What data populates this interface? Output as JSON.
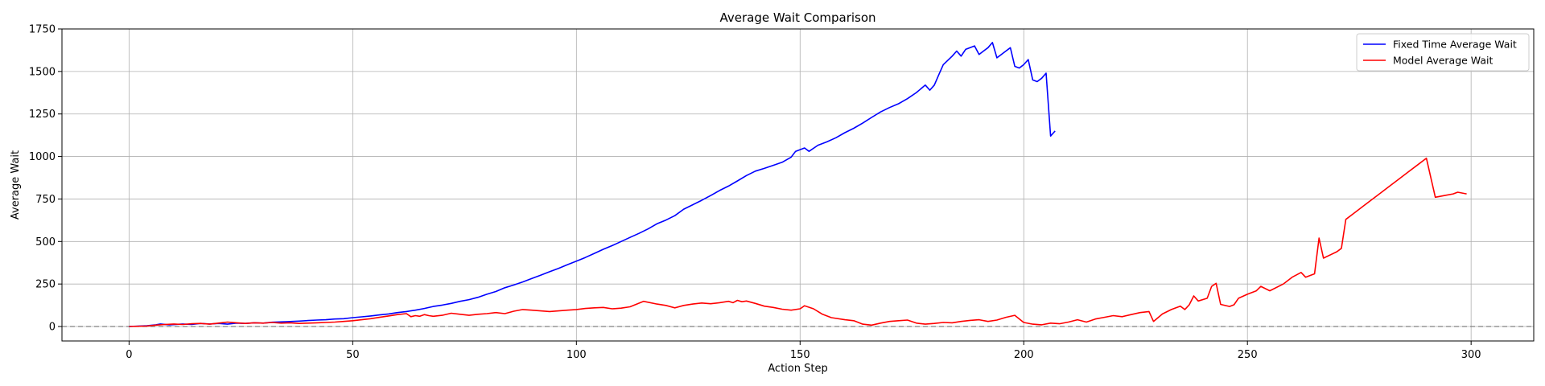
{
  "chart_data": {
    "type": "line",
    "title": "Average Wait Comparison",
    "xlabel": "Action Step",
    "ylabel": "Average Wait",
    "xlim": [
      -15,
      314
    ],
    "ylim": [
      -85,
      1750
    ],
    "xticks": [
      0,
      50,
      100,
      150,
      200,
      250,
      300
    ],
    "yticks": [
      0,
      250,
      500,
      750,
      1000,
      1250,
      1500,
      1750
    ],
    "xtick_labels": [
      "0",
      "50",
      "100",
      "150",
      "200",
      "250",
      "300"
    ],
    "ytick_labels": [
      "0",
      "250",
      "500",
      "750",
      "1000",
      "1250",
      "1500",
      "1750"
    ],
    "grid": true,
    "legend_position": "top-right",
    "reference_line": {
      "y": 0,
      "style": "dashed",
      "color": "#808080"
    },
    "series": [
      {
        "name": "Fixed Time Average Wait",
        "color": "#0000ff",
        "x": [
          0,
          4,
          6,
          7,
          9,
          12,
          14,
          16,
          18,
          20,
          22,
          24,
          26,
          28,
          30,
          32,
          35,
          38,
          40,
          42,
          44,
          46,
          48,
          50,
          52,
          54,
          56,
          58,
          60,
          62,
          64,
          66,
          68,
          70,
          72,
          74,
          76,
          78,
          80,
          82,
          84,
          86,
          88,
          90,
          92,
          94,
          96,
          98,
          100,
          102,
          104,
          106,
          108,
          110,
          112,
          114,
          116,
          118,
          120,
          122,
          124,
          126,
          128,
          130,
          132,
          134,
          136,
          138,
          140,
          142,
          144,
          146,
          148,
          149,
          151,
          152,
          154,
          156,
          158,
          160,
          162,
          164,
          166,
          168,
          170,
          172,
          174,
          176,
          178,
          179,
          180,
          181,
          182,
          184,
          185,
          186,
          187,
          189,
          190,
          191,
          192,
          193,
          194,
          195,
          196,
          197,
          198,
          199,
          200,
          201,
          202,
          203,
          204,
          205,
          206,
          207
        ],
        "y": [
          0,
          5,
          10,
          15,
          10,
          15,
          12,
          18,
          15,
          18,
          14,
          20,
          18,
          22,
          20,
          25,
          28,
          32,
          35,
          38,
          40,
          44,
          46,
          52,
          57,
          62,
          68,
          74,
          82,
          88,
          96,
          106,
          118,
          126,
          136,
          148,
          158,
          172,
          190,
          206,
          228,
          244,
          262,
          282,
          302,
          322,
          342,
          364,
          384,
          406,
          430,
          454,
          476,
          500,
          524,
          548,
          574,
          604,
          626,
          652,
          690,
          716,
          742,
          770,
          800,
          826,
          856,
          888,
          914,
          930,
          948,
          966,
          996,
          1030,
          1050,
          1030,
          1066,
          1086,
          1110,
          1140,
          1166,
          1196,
          1230,
          1262,
          1288,
          1310,
          1340,
          1376,
          1420,
          1390,
          1420,
          1480,
          1540,
          1590,
          1620,
          1590,
          1630,
          1650,
          1600,
          1620,
          1640,
          1670,
          1580,
          1600,
          1620,
          1640,
          1530,
          1520,
          1540,
          1570,
          1450,
          1440,
          1460,
          1490,
          1120,
          1150
        ]
      },
      {
        "name": "Model Average Wait",
        "color": "#ff0000",
        "x": [
          0,
          4,
          6,
          8,
          10,
          12,
          14,
          16,
          18,
          20,
          22,
          24,
          26,
          28,
          30,
          32,
          34,
          36,
          38,
          40,
          42,
          44,
          46,
          48,
          50,
          52,
          54,
          56,
          58,
          60,
          62,
          63,
          64,
          65,
          66,
          67,
          68,
          70,
          72,
          74,
          76,
          78,
          80,
          82,
          84,
          86,
          88,
          90,
          92,
          94,
          96,
          98,
          100,
          102,
          104,
          106,
          108,
          110,
          112,
          115,
          118,
          120,
          122,
          124,
          126,
          128,
          130,
          132,
          134,
          135,
          136,
          137,
          138,
          140,
          142,
          144,
          146,
          148,
          150,
          151,
          153,
          155,
          157,
          160,
          162,
          164,
          166,
          168,
          170,
          172,
          174,
          176,
          178,
          180,
          182,
          184,
          186,
          188,
          190,
          192,
          194,
          196,
          198,
          200,
          202,
          204,
          206,
          208,
          210,
          212,
          214,
          216,
          218,
          220,
          222,
          224,
          226,
          228,
          229,
          231,
          233,
          235,
          236,
          237,
          238,
          239,
          241,
          242,
          243,
          244,
          246,
          247,
          248,
          250,
          252,
          253,
          255,
          258,
          260,
          262,
          263,
          264,
          265,
          266,
          267,
          270,
          271,
          272,
          274,
          276,
          278,
          280,
          282,
          284,
          286,
          288,
          290,
          292,
          294,
          296,
          297,
          299
        ],
        "y": [
          0,
          3,
          8,
          12,
          15,
          12,
          16,
          18,
          14,
          20,
          26,
          22,
          18,
          22,
          20,
          24,
          20,
          22,
          18,
          20,
          22,
          24,
          26,
          30,
          34,
          40,
          46,
          54,
          62,
          70,
          76,
          58,
          64,
          60,
          70,
          64,
          60,
          66,
          78,
          72,
          66,
          72,
          76,
          82,
          76,
          90,
          100,
          96,
          92,
          88,
          92,
          96,
          100,
          106,
          110,
          112,
          104,
          108,
          116,
          148,
          132,
          124,
          110,
          124,
          132,
          138,
          134,
          140,
          148,
          140,
          154,
          146,
          150,
          136,
          120,
          112,
          102,
          96,
          104,
          122,
          104,
          72,
          52,
          40,
          34,
          14,
          8,
          20,
          30,
          34,
          38,
          20,
          14,
          18,
          24,
          22,
          30,
          36,
          40,
          30,
          38,
          54,
          66,
          24,
          14,
          10,
          20,
          16,
          26,
          40,
          26,
          44,
          54,
          64,
          58,
          70,
          82,
          88,
          30,
          74,
          100,
          120,
          100,
          128,
          180,
          150,
          166,
          236,
          254,
          130,
          118,
          128,
          166,
          190,
          210,
          236,
          210,
          250,
          290,
          318,
          290,
          300,
          310,
          520,
          402,
          440,
          460,
          630,
          670,
          710,
          750,
          790,
          830,
          870,
          910,
          950,
          990,
          760,
          770,
          780,
          790,
          780
        ]
      }
    ]
  }
}
